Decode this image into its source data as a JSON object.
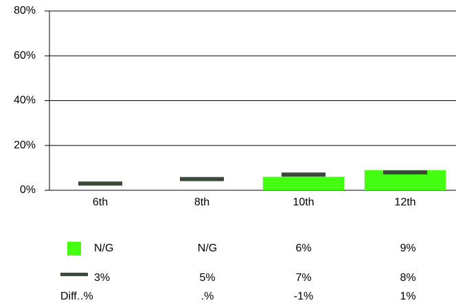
{
  "chart_data": {
    "type": "bar",
    "categories": [
      "6th",
      "8th",
      "10th",
      "12th"
    ],
    "series": [
      {
        "color": "#44ff11",
        "values": [
          null,
          null,
          6,
          9
        ],
        "value_labels": [
          "N/G",
          "N/G",
          "6%",
          "9%"
        ]
      },
      {
        "color": "#3b4a3b",
        "values": [
          3,
          5,
          7,
          8
        ],
        "value_labels": [
          "3%",
          "5%",
          "7%",
          "8%"
        ]
      }
    ],
    "diff": {
      "label": "Diff.",
      "values": [
        null,
        null,
        -1,
        1
      ],
      "value_labels": [
        ".%",
        ".%",
        "-1%",
        "1%"
      ]
    },
    "ylim": [
      0,
      80
    ],
    "yticks": [
      {
        "value": 0,
        "label": "0%"
      },
      {
        "value": 20,
        "label": "20%"
      },
      {
        "value": 40,
        "label": "40%"
      },
      {
        "value": 60,
        "label": "60%"
      },
      {
        "value": 80,
        "label": "80%"
      }
    ],
    "grid": true
  }
}
